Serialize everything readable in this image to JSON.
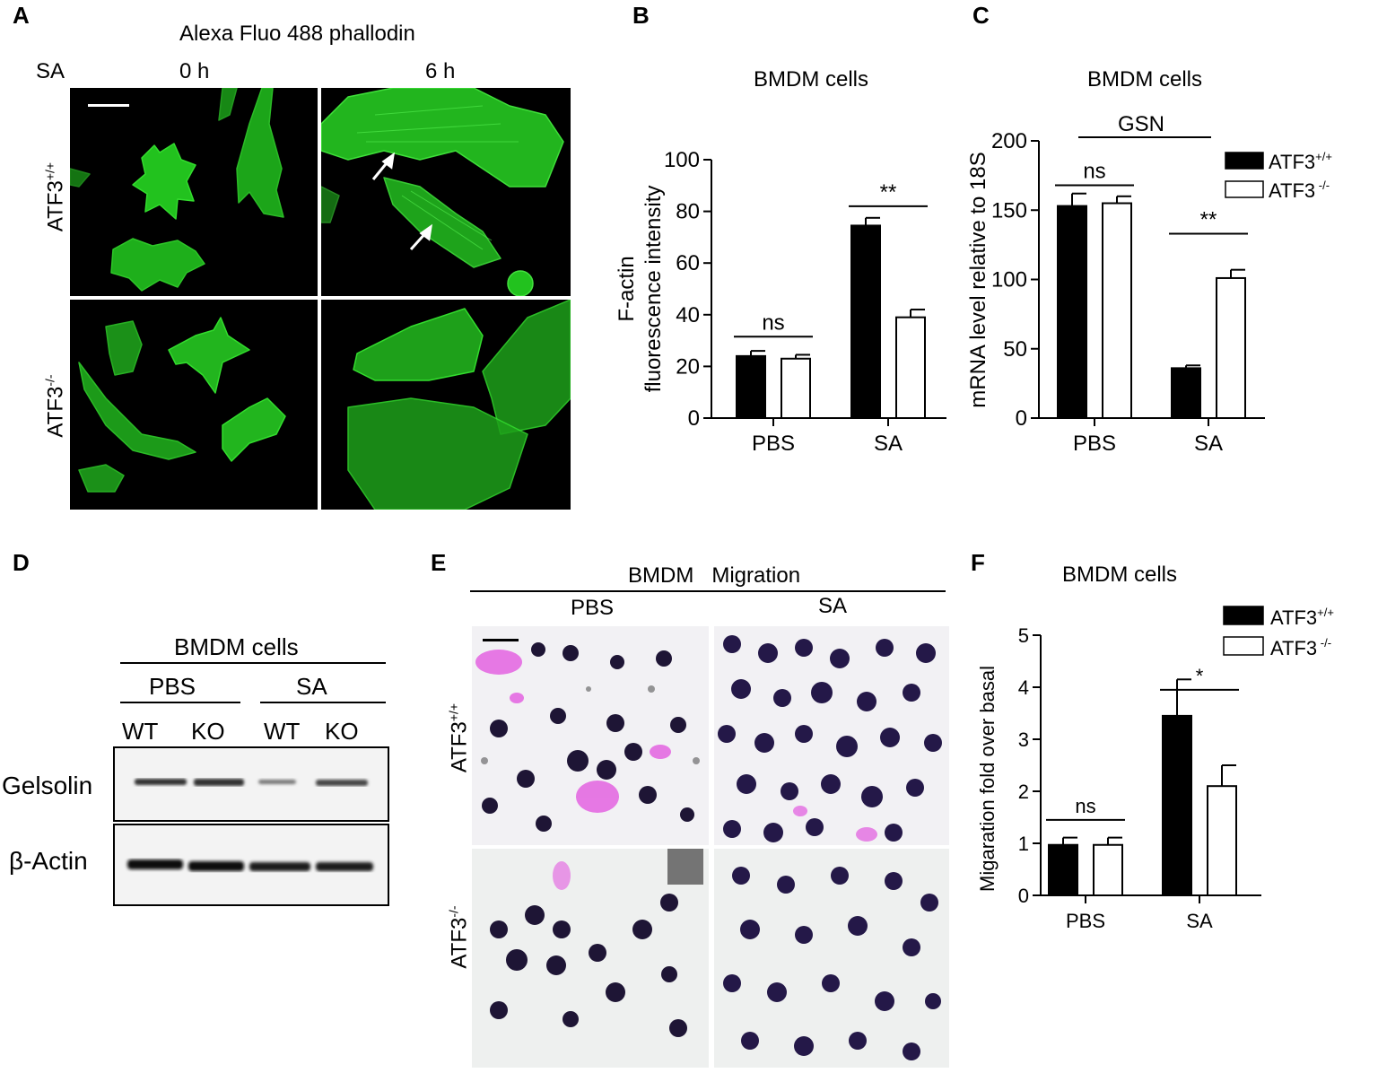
{
  "panel_labels": {
    "a": "A",
    "b": "B",
    "c": "C",
    "d": "D",
    "e": "E",
    "f": "F"
  },
  "panel_a": {
    "title": "Alexa Fluo 488 phallodin",
    "row_header": "SA",
    "col_labels": [
      "0 h",
      "6 h"
    ],
    "row_labels": [
      {
        "base": "ATF3",
        "sup": "+/+"
      },
      {
        "base": "ATF3",
        "sup": "-/-"
      }
    ],
    "stain_color": "#22c21e"
  },
  "panel_d": {
    "title": "BMDM cells",
    "groups": [
      "PBS",
      "SA"
    ],
    "lanes": [
      "WT",
      "KO",
      "WT",
      "KO"
    ],
    "rows": [
      "Gelsolin",
      "β-Actin"
    ]
  },
  "panel_e": {
    "title": "BMDM   Migration",
    "col_labels": [
      "PBS",
      "SA"
    ],
    "row_labels": [
      {
        "base": "ATF3",
        "sup": "+/+"
      },
      {
        "base": "ATF3",
        "sup": "-/-"
      }
    ]
  },
  "chart_data": [
    {
      "id": "B",
      "type": "bar",
      "title": "BMDM cells",
      "ylabel_lines": [
        "F-actin",
        "fluorescence intensity"
      ],
      "categories": [
        "PBS",
        "SA"
      ],
      "ylim": [
        0,
        100
      ],
      "yticks": [
        0,
        20,
        40,
        60,
        80,
        100
      ],
      "series": [
        {
          "values": [
            24,
            74.5
          ],
          "errors": [
            2,
            3
          ],
          "fill": "#000000"
        },
        {
          "values": [
            23,
            39
          ],
          "errors": [
            1.5,
            3
          ],
          "fill": "#ffffff"
        }
      ],
      "annotations": [
        {
          "category": 0,
          "label": "ns",
          "y": 31.5
        },
        {
          "category": 1,
          "label": "**",
          "y": 82
        }
      ]
    },
    {
      "id": "C",
      "type": "bar",
      "title": "BMDM cells",
      "gene_label": "GSN",
      "ylabel_lines": [
        "mRNA level relative to 18S"
      ],
      "categories": [
        "PBS",
        "SA"
      ],
      "ylim": [
        0,
        200
      ],
      "yticks": [
        0,
        50,
        100,
        150,
        200
      ],
      "series": [
        {
          "name": "ATF3",
          "sup": "+/+",
          "values": [
            153,
            36
          ],
          "errors": [
            9,
            2
          ],
          "fill": "#000000"
        },
        {
          "name": "ATF3",
          "sup": " -/-",
          "values": [
            155,
            101
          ],
          "errors": [
            5,
            6
          ],
          "fill": "#ffffff"
        }
      ],
      "annotations": [
        {
          "category": 0,
          "label": "ns",
          "y": 168
        },
        {
          "category": 1,
          "label": "**",
          "y": 133
        }
      ],
      "legend_position": "top-right"
    },
    {
      "id": "F",
      "type": "bar",
      "title": "BMDM cells",
      "ylabel_lines": [
        "Migaration fold over basal"
      ],
      "categories": [
        "PBS",
        "SA"
      ],
      "ylim": [
        0,
        5
      ],
      "yticks": [
        0,
        1,
        2,
        3,
        4,
        5
      ],
      "series": [
        {
          "name": "ATF3",
          "sup": "+/+",
          "values": [
            0.97,
            3.45
          ],
          "errors": [
            0.14,
            0.7
          ],
          "fill": "#000000"
        },
        {
          "name": "ATF3",
          "sup": " -/-",
          "values": [
            0.97,
            2.1
          ],
          "errors": [
            0.14,
            0.4
          ],
          "fill": "#ffffff"
        }
      ],
      "annotations": [
        {
          "category": 0,
          "label": "ns",
          "y": 1.45
        },
        {
          "category": 1,
          "label": "*",
          "y": 3.95
        }
      ],
      "legend_position": "top-right"
    }
  ]
}
